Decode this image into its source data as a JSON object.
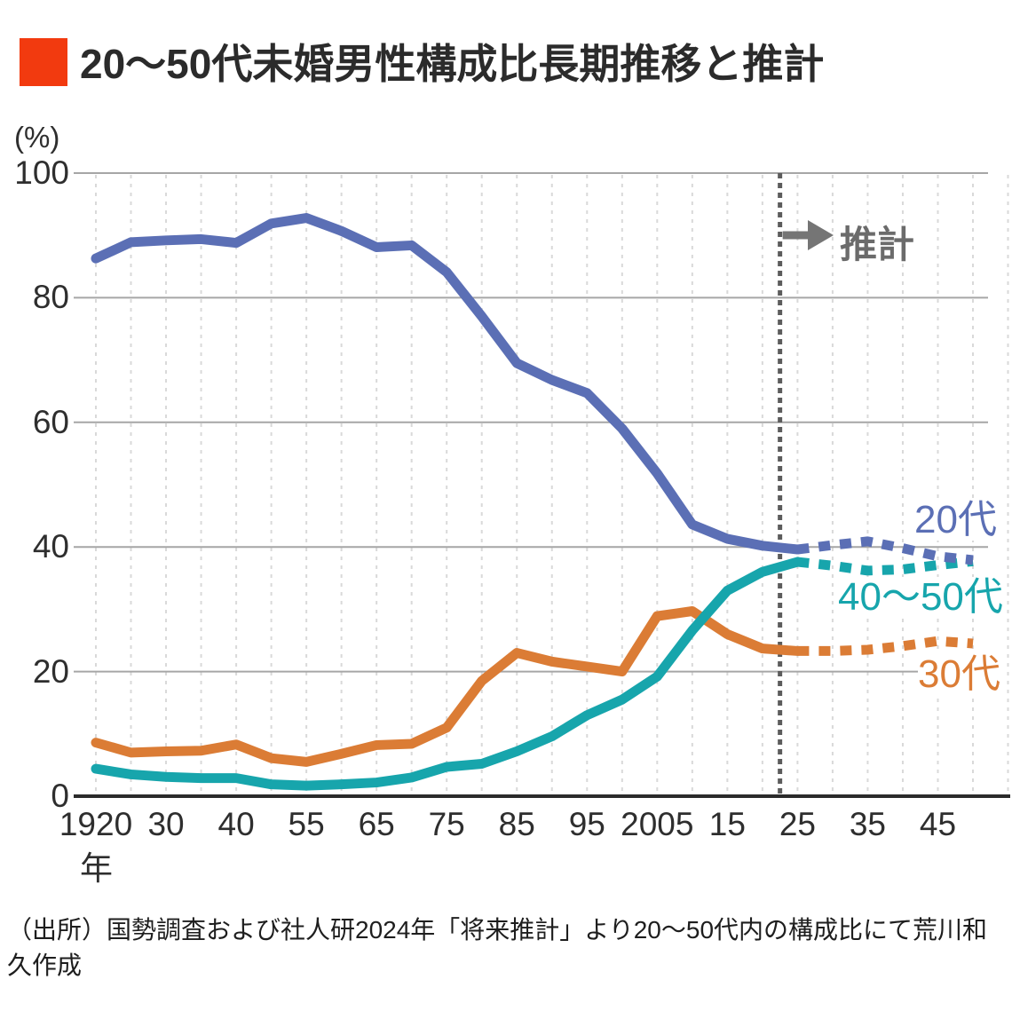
{
  "title": {
    "text": "20〜50代未婚男性構成比長期推移と推計",
    "bullet_color": "#F23A0F"
  },
  "chart_data": {
    "type": "line",
    "title": "20〜50代未婚男性構成比長期推移と推計",
    "y_axis_unit": "(%)",
    "ylim": [
      0,
      100
    ],
    "y_ticks": [
      0,
      20,
      40,
      60,
      80,
      100
    ],
    "x_axis_suffix": "年",
    "x_years": [
      1920,
      1925,
      1930,
      1935,
      1940,
      1950,
      1955,
      1960,
      1965,
      1970,
      1975,
      1980,
      1985,
      1990,
      1995,
      2000,
      2005,
      2010,
      2015,
      2020,
      2025,
      2030,
      2035,
      2040,
      2045,
      2050
    ],
    "x_tick_indices": [
      0,
      2,
      4,
      6,
      8,
      10,
      12,
      14,
      16,
      18,
      20,
      22,
      24
    ],
    "x_tick_labels": [
      "1920",
      "30",
      "40",
      "55",
      "65",
      "75",
      "85",
      "95",
      "2005",
      "15",
      "25",
      "35",
      "45"
    ],
    "grid": {
      "horizontal": true,
      "vertical_dashed": true
    },
    "legend_position": "inline-right",
    "projection": {
      "label": "推計",
      "divider_between_years": [
        2020,
        2025
      ],
      "dotted_from_year": 2025
    },
    "series": [
      {
        "name": "20代",
        "color": "#5B6FB5",
        "values": [
          86.3,
          88.9,
          89.2,
          89.4,
          88.8,
          91.9,
          92.8,
          90.7,
          88.1,
          88.4,
          84.1,
          77.0,
          69.5,
          66.8,
          64.7,
          59.0,
          51.8,
          43.6,
          41.3,
          40.2,
          39.6,
          40.3,
          40.9,
          39.8,
          38.5,
          37.9
        ]
      },
      {
        "name": "30代",
        "color": "#DB7C35",
        "values": [
          8.6,
          7.0,
          7.2,
          7.3,
          8.3,
          6.1,
          5.5,
          6.8,
          8.2,
          8.4,
          11.0,
          18.5,
          23.0,
          21.6,
          20.8,
          20.0,
          28.9,
          29.7,
          26.0,
          23.7,
          23.3,
          23.3,
          23.5,
          24.1,
          24.9,
          24.5
        ]
      },
      {
        "name": "40〜50代",
        "color": "#17A5AC",
        "values": [
          4.4,
          3.5,
          3.1,
          2.9,
          2.9,
          1.9,
          1.7,
          1.9,
          2.2,
          3.0,
          4.7,
          5.2,
          7.2,
          9.6,
          13.0,
          15.5,
          19.2,
          26.6,
          33.0,
          36.0,
          37.6,
          37.0,
          36.2,
          36.4,
          37.1,
          37.7
        ]
      }
    ],
    "style": {
      "grid_color": "#a6a6a6",
      "vertical_grid_color": "#d9d9d9",
      "axis_color": "#2b2b2b",
      "divider_color": "#5c5c5c",
      "arrow_color": "#757575"
    }
  },
  "footer": {
    "line1": "（出所）国勢調査および社人研2024年「将来推計」より20〜50代内の構成比にて荒川和",
    "line2": "久作成"
  }
}
